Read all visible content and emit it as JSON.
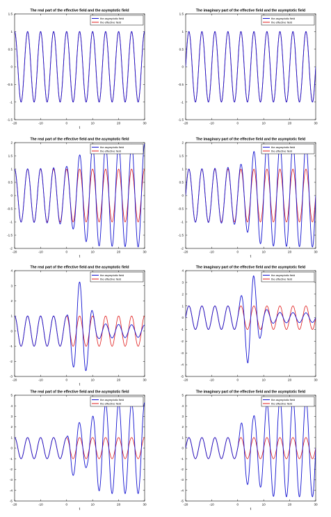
{
  "chart_data": [
    {
      "type": "line",
      "panel": 1,
      "title": "The real part of the effective field and the asymptotic field",
      "xlabel": "t",
      "ylabel": "",
      "xlim": [
        -20,
        30
      ],
      "ylim": [
        -1.5,
        1.5
      ],
      "xticks": [
        -20,
        -10,
        0,
        10,
        20,
        30
      ],
      "yticks": [
        -1.5,
        -1,
        -0.5,
        0,
        0.5,
        1,
        1.5
      ],
      "legend_position": "top-right",
      "series": [
        {
          "name": "the asymptotic field",
          "color": "#1010d0",
          "part": "real",
          "t_start": -20,
          "amplitudes": []
        },
        {
          "name": "the effective field",
          "color": "#e01818",
          "part": "real",
          "t_start": -20
        }
      ]
    },
    {
      "type": "line",
      "panel": 2,
      "title": "The imaginary part of the effective field and the asymptotic field",
      "xlabel": "",
      "ylabel": "",
      "xlim": [
        -20,
        30
      ],
      "ylim": [
        -1.5,
        1.5
      ],
      "xticks": [
        -20,
        -10,
        0,
        10,
        20,
        30
      ],
      "yticks": [
        -1.5,
        -1,
        -0.5,
        0,
        0.5,
        1,
        1.5
      ],
      "legend_position": "top-right",
      "series": [
        {
          "name": "the asymptotic field",
          "color": "#1010d0",
          "part": "imag",
          "t_start": -20,
          "amplitudes": []
        },
        {
          "name": "the effective field",
          "color": "#e01818",
          "part": "imag",
          "t_start": -20
        }
      ]
    },
    {
      "type": "line",
      "panel": 3,
      "title": "The real part of the effective field and the asymptotic field",
      "xlabel": "t",
      "ylabel": "",
      "xlim": [
        -20,
        30
      ],
      "ylim": [
        -2,
        2
      ],
      "xticks": [
        -20,
        -10,
        0,
        10,
        20,
        30
      ],
      "yticks": [
        -2,
        -1.5,
        -1,
        -0.5,
        0,
        0.5,
        1,
        1.5,
        2
      ],
      "legend_position": "top-right",
      "series": [
        {
          "name": "the asymptotic field",
          "color": "#1010d0",
          "part": "real",
          "t_start": -20,
          "amplitudes": [
            [
              -20,
              1.0
            ],
            [
              -10,
              1.02
            ],
            [
              -5,
              1.05
            ],
            [
              0,
              1.1
            ],
            [
              3,
              1.3
            ],
            [
              6,
              1.65
            ],
            [
              10,
              1.9
            ],
            [
              30,
              1.95
            ]
          ]
        },
        {
          "name": "the effective field",
          "color": "#e01818",
          "part": "real",
          "t_start": -20
        }
      ]
    },
    {
      "type": "line",
      "panel": 4,
      "title": "The imaginary part of the effective field and the asymptotic field",
      "xlabel": "t",
      "ylabel": "",
      "xlim": [
        -20,
        30
      ],
      "ylim": [
        -2,
        2
      ],
      "xticks": [
        -20,
        -10,
        0,
        10,
        20,
        30
      ],
      "yticks": [
        -2,
        -1.5,
        -1,
        -0.5,
        0,
        0.5,
        1,
        1.5,
        2
      ],
      "legend_position": "top-right",
      "series": [
        {
          "name": "the asymptotic field",
          "color": "#1010d0",
          "part": "imag",
          "t_start": -20,
          "amplitudes": [
            [
              -20,
              1.0
            ],
            [
              -10,
              1.02
            ],
            [
              -5,
              1.05
            ],
            [
              0,
              1.1
            ],
            [
              3,
              1.3
            ],
            [
              6,
              1.65
            ],
            [
              10,
              1.9
            ],
            [
              30,
              1.95
            ]
          ]
        },
        {
          "name": "the effective field",
          "color": "#e01818",
          "part": "imag",
          "t_start": -20
        }
      ]
    },
    {
      "type": "line",
      "panel": 5,
      "title": "The real part of the effective field and the asymptotic field",
      "xlabel": "t",
      "ylabel": "",
      "xlim": [
        -20,
        30
      ],
      "ylim": [
        -3,
        4
      ],
      "xticks": [
        -20,
        -10,
        0,
        10,
        20,
        30
      ],
      "yticks": [
        -3,
        -2,
        -1,
        0,
        1,
        2,
        3,
        4
      ],
      "legend_position": "top-right",
      "series": [
        {
          "name": "the asymptotic field",
          "color": "#1010d0",
          "part": "real",
          "t_start": 0,
          "amplitudes": [
            [
              0,
              1.0
            ],
            [
              2,
              2.0
            ],
            [
              4,
              3.3
            ],
            [
              6,
              3.2
            ],
            [
              8,
              2.4
            ],
            [
              10,
              1.3
            ],
            [
              12,
              0.5
            ],
            [
              18,
              0.45
            ],
            [
              30,
              0.4
            ]
          ]
        },
        {
          "name": "the effective field",
          "color": "#e01818",
          "part": "real",
          "t_start": -20
        }
      ]
    },
    {
      "type": "line",
      "panel": 6,
      "title": "The imaginary part of the effective field and the asymptotic field",
      "xlabel": "",
      "ylabel": "",
      "xlim": [
        -20,
        30
      ],
      "ylim": [
        -5,
        4
      ],
      "xticks": [
        -20,
        -10,
        0,
        10,
        20,
        30
      ],
      "yticks": [
        -5,
        -4,
        -3,
        -2,
        -1,
        0,
        1,
        2,
        3,
        4
      ],
      "legend_position": "top-right",
      "series": [
        {
          "name": "the asymptotic field",
          "color": "#1010d0",
          "part": "imag",
          "t_start": 0,
          "amplitudes": [
            [
              0,
              1.0
            ],
            [
              2,
              2.3
            ],
            [
              4,
              4.0
            ],
            [
              6,
              3.7
            ],
            [
              8,
              2.2
            ],
            [
              10,
              0.8
            ],
            [
              14,
              0.45
            ],
            [
              30,
              0.4
            ]
          ]
        },
        {
          "name": "the effective field",
          "color": "#e01818",
          "part": "imag",
          "t_start": -20
        }
      ]
    },
    {
      "type": "line",
      "panel": 7,
      "title": "The real part of the effective field and the asymptotic field",
      "xlabel": "t",
      "ylabel": "",
      "xlim": [
        -20,
        30
      ],
      "ylim": [
        -5,
        5
      ],
      "xticks": [
        -20,
        -10,
        0,
        10,
        20,
        30
      ],
      "yticks": [
        -5,
        -4,
        -3,
        -2,
        -1,
        0,
        1,
        2,
        3,
        4,
        5
      ],
      "legend_position": "top-right",
      "series": [
        {
          "name": "the asymptotic field",
          "color": "#1010d0",
          "part": "real",
          "t_start": 0,
          "amplitudes": [
            [
              0,
              1.0
            ],
            [
              2,
              2.5
            ],
            [
              4,
              2.8
            ],
            [
              6,
              2.0
            ],
            [
              8,
              1.8
            ],
            [
              10,
              3.0
            ],
            [
              12,
              4.0
            ],
            [
              16,
              4.3
            ],
            [
              30,
              4.3
            ]
          ]
        },
        {
          "name": "the effective field",
          "color": "#e01818",
          "part": "real",
          "t_start": -20
        }
      ]
    },
    {
      "type": "line",
      "panel": 8,
      "title": "The imaginary part of the effective field and the asymptotic field",
      "xlabel": "t",
      "ylabel": "",
      "xlim": [
        -20,
        30
      ],
      "ylim": [
        -5,
        5
      ],
      "xticks": [
        -20,
        -10,
        0,
        10,
        20,
        30
      ],
      "yticks": [
        -5,
        -4,
        -3,
        -2,
        -1,
        0,
        1,
        2,
        3,
        4,
        5
      ],
      "legend_position": "top-right",
      "series": [
        {
          "name": "the asymptotic field",
          "color": "#1010d0",
          "part": "imag",
          "t_start": 0,
          "amplitudes": [
            [
              0,
              1.0
            ],
            [
              2,
              3.0
            ],
            [
              4,
              3.5
            ],
            [
              6,
              3.0
            ],
            [
              8,
              3.5
            ],
            [
              10,
              4.0
            ],
            [
              14,
              4.6
            ],
            [
              30,
              4.6
            ]
          ]
        },
        {
          "name": "the effective field",
          "color": "#e01818",
          "part": "imag",
          "t_start": -20
        }
      ]
    }
  ]
}
